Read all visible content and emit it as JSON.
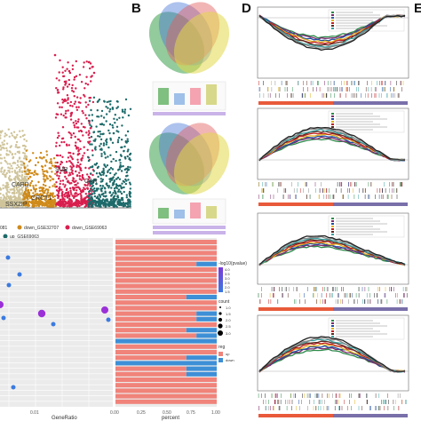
{
  "panel_labels": {
    "b": "B",
    "d": "D",
    "e": "E"
  },
  "panel_a": {
    "gene_labels": [
      "SSX2IP",
      "CARD",
      "CRCT1",
      "CAR",
      "SUP"
    ],
    "legend": [
      "down_GSE32707",
      "down_GSE69063",
      "up_GSE69063"
    ],
    "legend_prefix": "081",
    "colors": {
      "beige": "#cfc49a",
      "orange": "#cf8a1a",
      "red": "#d81e4e",
      "teal": "#1e6a6a"
    }
  },
  "panel_c": {
    "legend_title_1": "-log10(pvalue)",
    "legend_values_1": [
      "4.0",
      "3.5",
      "3.0",
      "2.5",
      "2.0",
      "1.5"
    ],
    "legend_title_2": "count",
    "legend_values_2": [
      "1.0",
      "1.5",
      "2.0",
      "2.5",
      "3.0"
    ],
    "legend_title_3": "reg",
    "legend_values_3": [
      "up",
      "down"
    ],
    "xlabel_left": "GeneRatio",
    "xlabel_right": "percent",
    "x_ticks_left": [
      "0.01"
    ],
    "x_ticks_right": [
      "0.00",
      "0.25",
      "0.50",
      "0.75",
      "1.00"
    ]
  },
  "chart_data": [
    {
      "type": "scatter",
      "description_of_series": "manhattan-like",
      "series": [
        {
          "name": "",
          "color": "#cfc49a",
          "x_range": [
            0,
            30
          ],
          "n": 500
        },
        {
          "name": "",
          "color": "#cf8a1a",
          "x_range": [
            25,
            60
          ],
          "n": 350
        },
        {
          "name": "",
          "color": "#d81e4e",
          "x_range": [
            60,
            100
          ],
          "n": 600
        },
        {
          "name": "",
          "color": "#1e6a6a",
          "x_range": [
            95,
            140
          ],
          "n": 550
        }
      ]
    },
    {
      "type": "bar",
      "orientation": "horizontal",
      "xlabel": "percent",
      "series": [
        {
          "name": "up",
          "color": "#f0837a"
        },
        {
          "name": "down",
          "color": "#3d8fd6"
        }
      ],
      "down_fraction": [
        0,
        0,
        0,
        0,
        0.2,
        0,
        0,
        0,
        0,
        0,
        0.3,
        0,
        0,
        0.2,
        0.2,
        0,
        0.3,
        0.2,
        1.0,
        0,
        0,
        0.3,
        1.0,
        0.3,
        0.3,
        0,
        0,
        0,
        0,
        0
      ]
    }
  ]
}
